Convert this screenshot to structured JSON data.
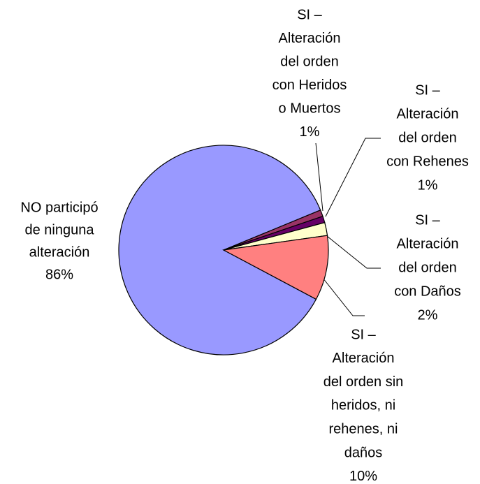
{
  "chart_data": {
    "type": "pie",
    "labels": [
      [
        "NO participó",
        "de ninguna",
        "alteración"
      ],
      [
        "SI –",
        "Alteración",
        "del orden",
        "con Heridos",
        "o Muertos"
      ],
      [
        "SI –",
        "Alteración",
        "del orden",
        "con Rehenes"
      ],
      [
        "SI –",
        "Alteración",
        "del orden",
        "con Daños"
      ],
      [
        "SI –",
        "Alteración",
        "del orden sin",
        "heridos, ni",
        "rehenes, ni",
        "daños"
      ]
    ],
    "values": [
      86,
      1,
      1,
      2,
      10
    ],
    "value_labels": [
      "86%",
      "1%",
      "1%",
      "2%",
      "10%"
    ],
    "colors": [
      "#9999ff",
      "#993366",
      "#660066",
      "#ffffcc",
      "#ff8080"
    ]
  }
}
